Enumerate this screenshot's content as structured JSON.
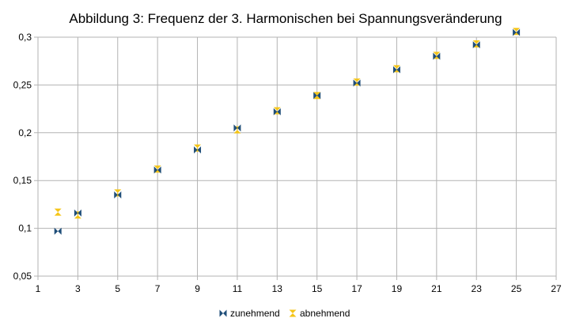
{
  "chart_data": {
    "type": "scatter",
    "title": "Abbildung 3: Frequenz der 3. Harmonischen bei Spannungsveränderung",
    "xlim": [
      1,
      27
    ],
    "ylim": [
      0.05,
      0.3
    ],
    "x_ticks": [
      1,
      3,
      5,
      7,
      9,
      11,
      13,
      15,
      17,
      19,
      21,
      23,
      25,
      27
    ],
    "y_ticks": [
      0.05,
      0.1,
      0.15,
      0.2,
      0.25,
      0.3
    ],
    "x_tick_labels": [
      "1",
      "3",
      "5",
      "7",
      "9",
      "11",
      "13",
      "15",
      "17",
      "19",
      "21",
      "23",
      "25",
      "27"
    ],
    "y_tick_labels": [
      "0,05",
      "0,1",
      "0,15",
      "0,2",
      "0,25",
      "0,3"
    ],
    "grid": true,
    "legend_position": "bottom",
    "series": [
      {
        "name": "zunehmend",
        "color": "#1f4e79",
        "marker": "bowtie-horizontal",
        "x": [
          2,
          3,
          5,
          7,
          9,
          11,
          13,
          15,
          17,
          19,
          21,
          23,
          25
        ],
        "y": [
          0.097,
          0.116,
          0.135,
          0.161,
          0.182,
          0.205,
          0.222,
          0.239,
          0.252,
          0.266,
          0.28,
          0.292,
          0.305
        ]
      },
      {
        "name": "abnehmend",
        "color": "#f5c518",
        "marker": "hourglass-vertical",
        "x": [
          2,
          3,
          5,
          7,
          9,
          11,
          13,
          15,
          17,
          19,
          21,
          23,
          25
        ],
        "y": [
          0.117,
          0.114,
          0.137,
          0.162,
          0.184,
          0.203,
          0.223,
          0.239,
          0.253,
          0.267,
          0.281,
          0.293,
          0.306
        ]
      }
    ]
  }
}
